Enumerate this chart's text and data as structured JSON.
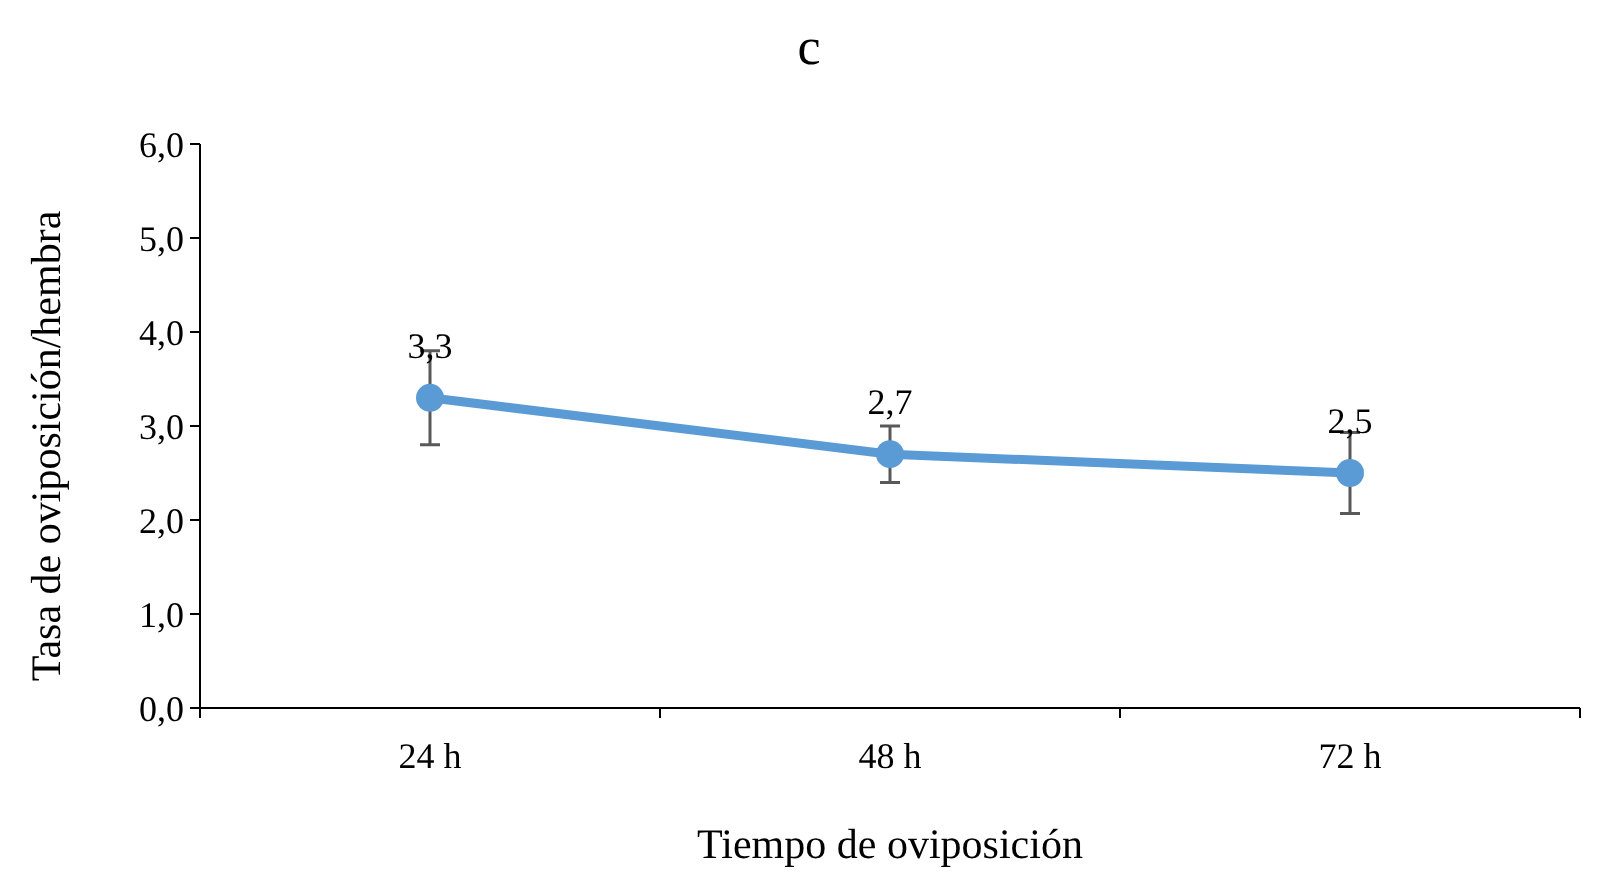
{
  "chart_data": {
    "type": "line",
    "title": "c",
    "xlabel": "Tiempo de oviposición",
    "ylabel": "Tasa de oviposición/hembra",
    "categories": [
      "24 h",
      "48 h",
      "72 h"
    ],
    "series": [
      {
        "color": "#5b9bd5",
        "values": [
          3.3,
          2.7,
          2.5
        ],
        "errors": [
          0.5,
          0.3,
          0.43
        ],
        "value_labels": [
          "3,3",
          "2,7",
          "2,5"
        ]
      }
    ],
    "ylim": [
      0,
      6
    ],
    "yticks": [
      {
        "value": 0,
        "label": "0,0"
      },
      {
        "value": 1,
        "label": "1,0"
      },
      {
        "value": 2,
        "label": "2,0"
      },
      {
        "value": 3,
        "label": "3,0"
      },
      {
        "value": 4,
        "label": "4,0"
      },
      {
        "value": 5,
        "label": "5,0"
      },
      {
        "value": 6,
        "label": "6,0"
      }
    ],
    "marker": "circle"
  }
}
